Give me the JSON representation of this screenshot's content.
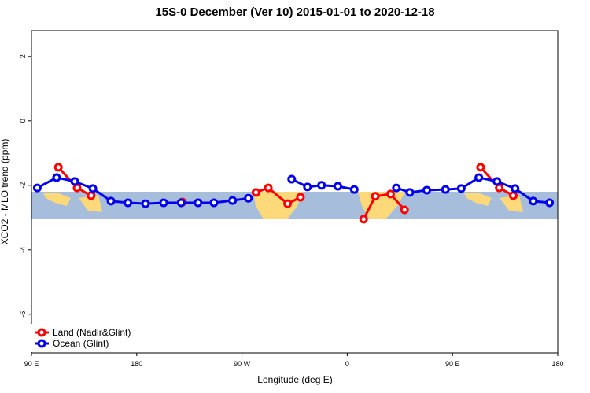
{
  "chart_data": {
    "type": "line",
    "title": "15S-0 December (Ver 10)   2015-01-01 to 2020-12-18",
    "x_label": "Longitude (deg E)",
    "y_label": "XCO2 - MLO trend (ppm)",
    "xlim": [
      90,
      540
    ],
    "ylim": [
      -7.2,
      2.8
    ],
    "xticks": [
      {
        "value": 90,
        "label": "90 E"
      },
      {
        "value": 180,
        "label": "180"
      },
      {
        "value": 270,
        "label": "90 W"
      },
      {
        "value": 360,
        "label": "0"
      },
      {
        "value": 450,
        "label": "90 E"
      },
      {
        "value": 540,
        "label": "180"
      }
    ],
    "yticks": [
      2,
      0,
      -2,
      -4,
      -6
    ],
    "legend": "bottom-left",
    "series": [
      {
        "name": "Land (Nadir&Glint)",
        "color": "#ff0000",
        "x": [
          113,
          129,
          141,
          null,
          219,
          null,
          282,
          292.5,
          309,
          320,
          null,
          374,
          384,
          397,
          409,
          null,
          474,
          490,
          502
        ],
        "values": [
          -1.44,
          -2.08,
          -2.32,
          null,
          -2.52,
          null,
          -2.22,
          -2.08,
          -2.57,
          -2.37,
          null,
          -3.05,
          -2.34,
          -2.27,
          -2.76,
          null,
          -1.44,
          -2.08,
          -2.32
        ]
      },
      {
        "name": "Ocean (Glint)",
        "color": "#0000ee",
        "x": [
          95,
          111.5,
          127,
          142.5,
          158,
          172.5,
          187.5,
          203,
          218,
          232.5,
          246,
          262,
          275.5,
          null,
          312.5,
          326,
          338,
          352,
          366,
          null,
          402,
          413.5,
          428,
          444,
          457.5,
          472.5,
          488,
          503.5,
          519,
          533
        ],
        "values": [
          -2.08,
          -1.76,
          -1.88,
          -2.1,
          -2.49,
          -2.54,
          -2.57,
          -2.54,
          -2.54,
          -2.54,
          -2.54,
          -2.47,
          -2.4,
          null,
          -1.81,
          -2.05,
          -2.0,
          -2.03,
          -2.13,
          null,
          -2.08,
          -2.22,
          -2.15,
          -2.13,
          -2.1,
          -1.76,
          -1.88,
          -2.1,
          -2.49,
          -2.54
        ]
      }
    ]
  }
}
